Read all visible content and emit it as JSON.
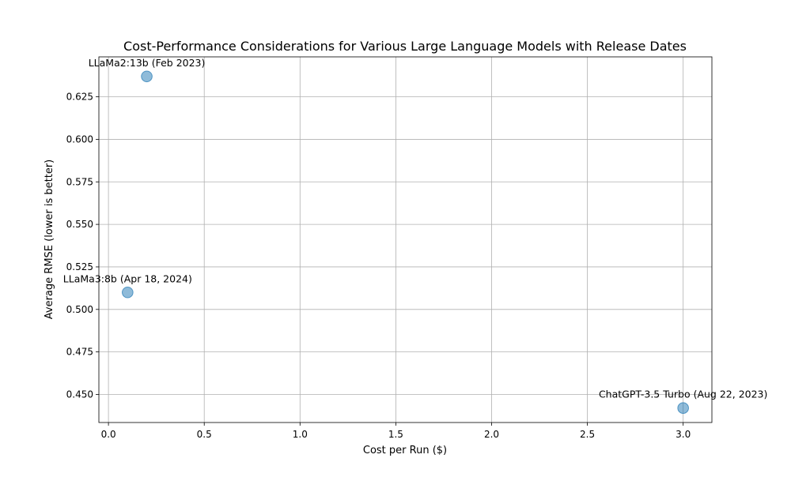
{
  "chart_data": {
    "type": "scatter",
    "title": "Cost-Performance Considerations for Various Large Language Models with Release Dates",
    "xlabel": "Cost per Run ($)",
    "ylabel": "Average RMSE (lower is better)",
    "xlim": [
      -0.05,
      3.15
    ],
    "ylim": [
      0.4335,
      0.6485
    ],
    "xticks": [
      "0.0",
      "0.5",
      "1.0",
      "1.5",
      "2.0",
      "2.5",
      "3.0"
    ],
    "xtick_values": [
      0,
      0.5,
      1.0,
      1.5,
      2.0,
      2.5,
      3.0
    ],
    "yticks": [
      "0.450",
      "0.475",
      "0.500",
      "0.525",
      "0.550",
      "0.575",
      "0.600",
      "0.625"
    ],
    "ytick_values": [
      0.45,
      0.475,
      0.5,
      0.525,
      0.55,
      0.575,
      0.6,
      0.625
    ],
    "grid": true,
    "point_color": "#1f77b4",
    "points": [
      {
        "x": 0.2,
        "y": 0.637,
        "label": "LLaMa2:13b (Feb 2023)"
      },
      {
        "x": 0.1,
        "y": 0.51,
        "label": "LLaMa3:8b (Apr 18, 2024)"
      },
      {
        "x": 3.0,
        "y": 0.442,
        "label": "ChatGPT-3.5 Turbo (Aug 22, 2023)"
      }
    ]
  }
}
